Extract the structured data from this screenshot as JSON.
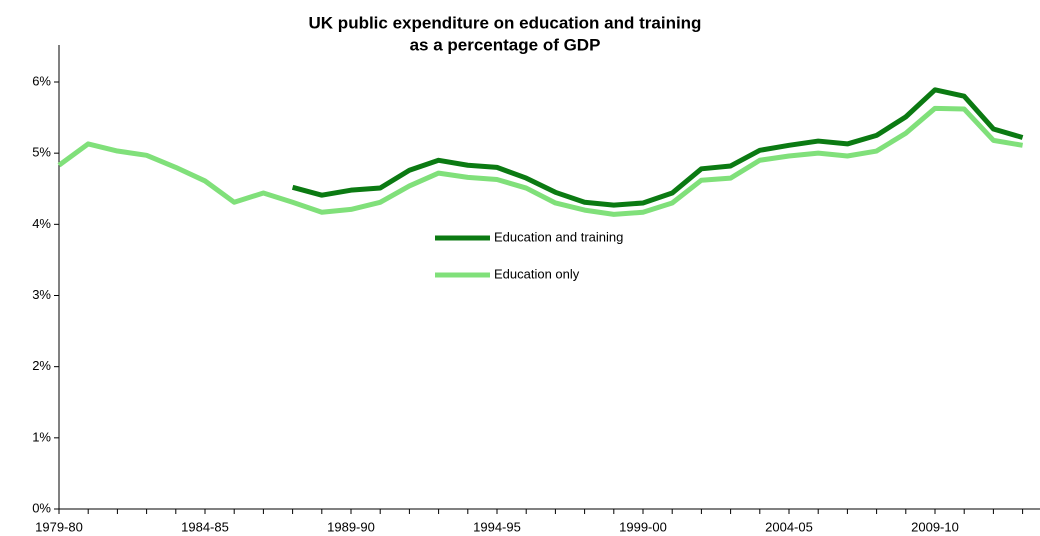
{
  "chart_data": {
    "type": "line",
    "title": [
      "UK public expenditure on education and training",
      "as a percentage of GDP"
    ],
    "categories": [
      "1979-80",
      null,
      null,
      null,
      null,
      "1984-85",
      null,
      null,
      null,
      null,
      "1989-90",
      null,
      null,
      null,
      null,
      "1994-95",
      null,
      null,
      null,
      null,
      "1999-00",
      null,
      null,
      null,
      null,
      "2004-05",
      null,
      null,
      null,
      null,
      "2009-10",
      null,
      null,
      null
    ],
    "series": [
      {
        "name": "Education and training",
        "color": "#0b7a12",
        "values": [
          null,
          null,
          null,
          null,
          null,
          null,
          null,
          null,
          4.52,
          4.41,
          4.48,
          4.51,
          4.76,
          4.9,
          4.83,
          4.8,
          4.65,
          4.45,
          4.31,
          4.27,
          4.3,
          4.44,
          4.78,
          4.82,
          5.04,
          5.11,
          5.17,
          5.13,
          5.25,
          5.51,
          5.89,
          5.8,
          5.34,
          5.22
        ]
      },
      {
        "name": "Education only",
        "color": "#80e07a",
        "values": [
          4.83,
          5.13,
          5.03,
          4.97,
          4.8,
          4.61,
          4.31,
          4.44,
          4.31,
          4.17,
          4.21,
          4.31,
          4.54,
          4.72,
          4.66,
          4.63,
          4.51,
          4.3,
          4.2,
          4.14,
          4.17,
          4.3,
          4.62,
          4.65,
          4.9,
          4.96,
          5.0,
          4.96,
          5.03,
          5.28,
          5.63,
          5.62,
          5.18,
          5.11
        ]
      }
    ],
    "ylim": [
      0,
      6.5
    ],
    "yticks": [
      {
        "value": 0,
        "label": "0%"
      },
      {
        "value": 1,
        "label": "1%"
      },
      {
        "value": 2,
        "label": "2%"
      },
      {
        "value": 3,
        "label": "3%"
      },
      {
        "value": 4,
        "label": "4%"
      },
      {
        "value": 5,
        "label": "5%"
      },
      {
        "value": 6,
        "label": "6%"
      }
    ],
    "grid": false,
    "legend": "center"
  }
}
